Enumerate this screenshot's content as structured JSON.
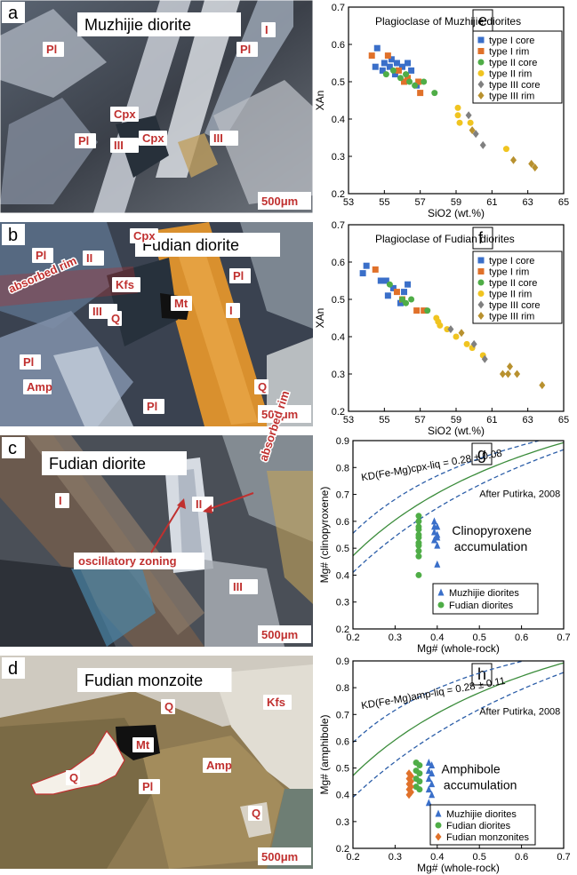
{
  "photos": [
    {
      "letter": "a",
      "title": "Muzhijie diorite",
      "scale": "500μm",
      "labels": [
        {
          "t": "Pl",
          "x": 52,
          "y": 60
        },
        {
          "t": "Pl",
          "x": 270,
          "y": 60
        },
        {
          "t": "I",
          "x": 298,
          "y": 38
        },
        {
          "t": "Cpx",
          "x": 128,
          "y": 133
        },
        {
          "t": "Cpx",
          "x": 160,
          "y": 160
        },
        {
          "t": "III",
          "x": 240,
          "y": 160
        },
        {
          "t": "III",
          "x": 128,
          "y": 168
        },
        {
          "t": "Pl",
          "x": 88,
          "y": 163
        }
      ]
    },
    {
      "letter": "b",
      "title": "Fudian diorite",
      "scale": "500μm",
      "labels": [
        {
          "t": "Cpx",
          "x": 150,
          "y": 270
        },
        {
          "t": "Pl",
          "x": 40,
          "y": 292
        },
        {
          "t": "II",
          "x": 97,
          "y": 295
        },
        {
          "t": "Kfs",
          "x": 130,
          "y": 325
        },
        {
          "t": "Pl",
          "x": 262,
          "y": 315
        },
        {
          "t": "Mt",
          "x": 196,
          "y": 346
        },
        {
          "t": "I",
          "x": 258,
          "y": 354
        },
        {
          "t": "III",
          "x": 104,
          "y": 355
        },
        {
          "t": "Q",
          "x": 125,
          "y": 363
        },
        {
          "t": "Pl",
          "x": 26,
          "y": 412
        },
        {
          "t": "Amp",
          "x": 30,
          "y": 440
        },
        {
          "t": "Q",
          "x": 290,
          "y": 440
        },
        {
          "t": "Pl",
          "x": 165,
          "y": 462
        }
      ],
      "annotations": [
        {
          "t": "absorbed rim",
          "x": 12,
          "y": 330
        }
      ]
    },
    {
      "letter": "c",
      "title": "Fudian diorite",
      "scale": "500μm",
      "labels": [
        {
          "t": "I",
          "x": 66,
          "y": 568
        },
        {
          "t": "II",
          "x": 220,
          "y": 572
        },
        {
          "t": "III",
          "x": 262,
          "y": 665
        }
      ],
      "annotations": [
        {
          "t": "absorbed rim",
          "x": 300,
          "y": 520
        },
        {
          "t": "oscillatory zoning",
          "x": 88,
          "y": 636
        }
      ]
    },
    {
      "letter": "d",
      "title": "Fudian monzoite",
      "scale": "500μm",
      "labels": [
        {
          "t": "Q",
          "x": 185,
          "y": 800
        },
        {
          "t": "Kfs",
          "x": 300,
          "y": 795
        },
        {
          "t": "Mt",
          "x": 153,
          "y": 843
        },
        {
          "t": "Amp",
          "x": 232,
          "y": 866
        },
        {
          "t": "Q",
          "x": 78,
          "y": 880
        },
        {
          "t": "Pl",
          "x": 160,
          "y": 890
        },
        {
          "t": "Q",
          "x": 283,
          "y": 920
        }
      ]
    }
  ],
  "chart_data": [
    {
      "panel": "e",
      "type": "scatter",
      "title": "Plagioclase of Muzhijie diorites",
      "xlabel": "SiO2 (wt.%)",
      "ylabel": "XAn",
      "xlim": [
        53,
        65
      ],
      "ylim": [
        0.2,
        0.7
      ],
      "xticks": [
        "53",
        "55",
        "57",
        "59",
        "61",
        "63",
        "65"
      ],
      "yticks": [
        "0.2",
        "0.3",
        "0.4",
        "0.5",
        "0.6",
        "0.7"
      ],
      "series": [
        {
          "name": "type I core",
          "color": "#3a6fc9",
          "marker": "square",
          "points": [
            [
              54.6,
              0.59
            ],
            [
              54.5,
              0.54
            ],
            [
              54.9,
              0.53
            ],
            [
              55.0,
              0.55
            ],
            [
              55.4,
              0.56
            ],
            [
              55.7,
              0.55
            ],
            [
              56.0,
              0.54
            ],
            [
              56.3,
              0.55
            ],
            [
              55.6,
              0.52
            ],
            [
              56.5,
              0.53
            ],
            [
              55.3,
              0.54
            ],
            [
              56.8,
              0.49
            ]
          ]
        },
        {
          "name": "type I rim",
          "color": "#e0712a",
          "marker": "square",
          "points": [
            [
              54.3,
              0.57
            ],
            [
              55.2,
              0.57
            ],
            [
              55.8,
              0.53
            ],
            [
              56.3,
              0.51
            ],
            [
              56.9,
              0.5
            ],
            [
              57.0,
              0.47
            ],
            [
              56.1,
              0.5
            ]
          ]
        },
        {
          "name": "type II core",
          "color": "#4fad47",
          "marker": "circle",
          "points": [
            [
              55.1,
              0.52
            ],
            [
              55.5,
              0.53
            ],
            [
              55.9,
              0.51
            ],
            [
              56.4,
              0.5
            ],
            [
              56.7,
              0.49
            ],
            [
              57.2,
              0.5
            ],
            [
              57.8,
              0.47
            ],
            [
              56.2,
              0.52
            ]
          ]
        },
        {
          "name": "type II rim",
          "color": "#f0c420",
          "marker": "circle",
          "points": [
            [
              59.1,
              0.43
            ],
            [
              59.1,
              0.41
            ],
            [
              59.2,
              0.39
            ],
            [
              59.8,
              0.39
            ],
            [
              61.8,
              0.32
            ]
          ]
        },
        {
          "name": "type III core",
          "color": "#808080",
          "marker": "diamond",
          "points": [
            [
              59.7,
              0.41
            ],
            [
              60.1,
              0.36
            ],
            [
              60.5,
              0.33
            ]
          ]
        },
        {
          "name": "type III rim",
          "color": "#b8912f",
          "marker": "diamond",
          "points": [
            [
              59.9,
              0.37
            ],
            [
              62.2,
              0.29
            ],
            [
              63.2,
              0.28
            ],
            [
              63.4,
              0.27
            ]
          ]
        }
      ]
    },
    {
      "panel": "f",
      "type": "scatter",
      "title": "Plagioclase of Fudian diorites",
      "xlabel": "SiO2 (wt.%)",
      "ylabel": "XAn",
      "xlim": [
        53,
        65
      ],
      "ylim": [
        0.2,
        0.7
      ],
      "xticks": [
        "53",
        "55",
        "57",
        "59",
        "61",
        "63",
        "65"
      ],
      "yticks": [
        "0.2",
        "0.3",
        "0.4",
        "0.5",
        "0.6",
        "0.7"
      ],
      "series": [
        {
          "name": "type I core",
          "color": "#3a6fc9",
          "marker": "square",
          "points": [
            [
              54.0,
              0.59
            ],
            [
              53.8,
              0.57
            ],
            [
              54.8,
              0.55
            ],
            [
              55.1,
              0.55
            ],
            [
              55.5,
              0.53
            ],
            [
              56.3,
              0.54
            ],
            [
              55.9,
              0.49
            ],
            [
              55.2,
              0.51
            ],
            [
              56.1,
              0.52
            ]
          ]
        },
        {
          "name": "type I rim",
          "color": "#e0712a",
          "marker": "square",
          "points": [
            [
              54.5,
              0.58
            ],
            [
              55.7,
              0.52
            ],
            [
              56.8,
              0.47
            ],
            [
              57.2,
              0.47
            ],
            [
              56.0,
              0.5
            ]
          ]
        },
        {
          "name": "type II core",
          "color": "#4fad47",
          "marker": "circle",
          "points": [
            [
              55.3,
              0.54
            ],
            [
              56.0,
              0.5
            ],
            [
              56.2,
              0.49
            ],
            [
              56.5,
              0.5
            ],
            [
              57.4,
              0.47
            ]
          ]
        },
        {
          "name": "type II rim",
          "color": "#f0c420",
          "marker": "circle",
          "points": [
            [
              57.9,
              0.45
            ],
            [
              58.0,
              0.44
            ],
            [
              58.1,
              0.43
            ],
            [
              58.5,
              0.42
            ],
            [
              59.0,
              0.4
            ],
            [
              59.6,
              0.38
            ],
            [
              59.9,
              0.37
            ],
            [
              60.5,
              0.35
            ]
          ]
        },
        {
          "name": "type III core",
          "color": "#808080",
          "marker": "diamond",
          "points": [
            [
              58.7,
              0.42
            ],
            [
              60.0,
              0.38
            ],
            [
              60.6,
              0.34
            ]
          ]
        },
        {
          "name": "type III rim",
          "color": "#b8912f",
          "marker": "diamond",
          "points": [
            [
              59.3,
              0.41
            ],
            [
              61.6,
              0.3
            ],
            [
              61.9,
              0.3
            ],
            [
              62.0,
              0.32
            ],
            [
              62.4,
              0.3
            ],
            [
              63.8,
              0.27
            ]
          ]
        }
      ]
    },
    {
      "panel": "g",
      "type": "scatter",
      "xlabel": "Mg# (whole-rock)",
      "ylabel": "Mg# (clinopyroxene)",
      "xlim": [
        0.2,
        0.7
      ],
      "ylim": [
        0.2,
        0.9
      ],
      "xticks": [
        "0.2",
        "0.3",
        "0.4",
        "0.5",
        "0.6",
        "0.7"
      ],
      "yticks": [
        "0.2",
        "0.3",
        "0.4",
        "0.5",
        "0.6",
        "0.7",
        "0.8",
        "0.9"
      ],
      "kd_main": 0.28,
      "kd_err": 0.08,
      "equation": "KD(Fe-Mg)cpx-liq = 0.28 ± 0.08",
      "source": "After Putirka, 2008",
      "note": "Clinopyroxene accumulation",
      "series": [
        {
          "name": "Muzhijie diorites",
          "color": "#3a6fc9",
          "marker": "triangle",
          "points": [
            [
              0.393,
              0.6
            ],
            [
              0.393,
              0.58
            ],
            [
              0.4,
              0.58
            ],
            [
              0.393,
              0.56
            ],
            [
              0.4,
              0.55
            ],
            [
              0.4,
              0.54
            ],
            [
              0.393,
              0.53
            ],
            [
              0.4,
              0.51
            ],
            [
              0.4,
              0.44
            ]
          ]
        },
        {
          "name": "Fudian diorites",
          "color": "#4fad47",
          "marker": "circle",
          "points": [
            [
              0.356,
              0.62
            ],
            [
              0.356,
              0.6
            ],
            [
              0.356,
              0.58
            ],
            [
              0.356,
              0.57
            ],
            [
              0.356,
              0.55
            ],
            [
              0.356,
              0.54
            ],
            [
              0.356,
              0.52
            ],
            [
              0.356,
              0.51
            ],
            [
              0.356,
              0.49
            ],
            [
              0.356,
              0.47
            ],
            [
              0.356,
              0.4
            ]
          ]
        }
      ]
    },
    {
      "panel": "h",
      "type": "scatter",
      "xlabel": "Mg# (whole-rock)",
      "ylabel": "Mg# (amphibole)",
      "xlim": [
        0.2,
        0.7
      ],
      "ylim": [
        0.2,
        0.9
      ],
      "xticks": [
        "0.2",
        "0.3",
        "0.4",
        "0.5",
        "0.6",
        "0.7"
      ],
      "yticks": [
        "0.2",
        "0.3",
        "0.4",
        "0.5",
        "0.6",
        "0.7",
        "0.8",
        "0.9"
      ],
      "kd_main": 0.28,
      "kd_err": 0.11,
      "equation": "KD(Fe-Mg)amp-liq = 0.28 ± 0.11",
      "source": "After Putirka, 2008",
      "note": "Amphibole accumulation",
      "series": [
        {
          "name": "Muzhijie diorites",
          "color": "#3a6fc9",
          "marker": "triangle",
          "points": [
            [
              0.38,
              0.52
            ],
            [
              0.387,
              0.51
            ],
            [
              0.38,
              0.49
            ],
            [
              0.387,
              0.48
            ],
            [
              0.38,
              0.46
            ],
            [
              0.387,
              0.44
            ],
            [
              0.38,
              0.42
            ],
            [
              0.387,
              0.4
            ],
            [
              0.38,
              0.37
            ]
          ]
        },
        {
          "name": "Fudian diorites",
          "color": "#4fad47",
          "marker": "circle",
          "points": [
            [
              0.35,
              0.52
            ],
            [
              0.358,
              0.51
            ],
            [
              0.35,
              0.49
            ],
            [
              0.358,
              0.48
            ],
            [
              0.35,
              0.46
            ],
            [
              0.358,
              0.45
            ],
            [
              0.35,
              0.43
            ],
            [
              0.358,
              0.42
            ]
          ]
        },
        {
          "name": "Fudian monzonites",
          "color": "#e0712a",
          "marker": "diamond",
          "points": [
            [
              0.333,
              0.48
            ],
            [
              0.338,
              0.47
            ],
            [
              0.333,
              0.46
            ],
            [
              0.338,
              0.45
            ],
            [
              0.333,
              0.44
            ],
            [
              0.338,
              0.43
            ],
            [
              0.333,
              0.42
            ],
            [
              0.338,
              0.41
            ],
            [
              0.333,
              0.4
            ]
          ]
        }
      ]
    }
  ]
}
